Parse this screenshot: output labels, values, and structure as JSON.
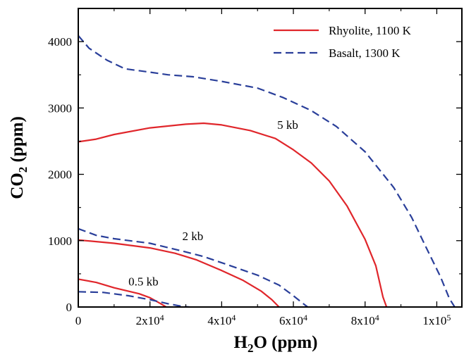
{
  "chart_data": {
    "type": "line",
    "xlabel": {
      "main": "H",
      "sub": "2",
      "rest": "O (ppm)"
    },
    "ylabel": {
      "main": "CO",
      "sub": "2",
      "rest": " (ppm)"
    },
    "xlim": [
      0,
      107000
    ],
    "ylim": [
      0,
      4500
    ],
    "x_ticks": [
      {
        "value": 0,
        "base": "0",
        "exp": ""
      },
      {
        "value": 20000,
        "base": "2x10",
        "exp": "4"
      },
      {
        "value": 40000,
        "base": "4x10",
        "exp": "4"
      },
      {
        "value": 60000,
        "base": "6x10",
        "exp": "4"
      },
      {
        "value": 80000,
        "base": "8x10",
        "exp": "4"
      },
      {
        "value": 100000,
        "base": "1x10",
        "exp": "5"
      }
    ],
    "y_ticks": [
      {
        "value": 0,
        "label": "0"
      },
      {
        "value": 1000,
        "label": "1000"
      },
      {
        "value": 2000,
        "label": "2000"
      },
      {
        "value": 3000,
        "label": "3000"
      },
      {
        "value": 4000,
        "label": "4000"
      }
    ],
    "legend": {
      "position": "top-right",
      "entries": [
        {
          "label": "Rhyolite, 1100 K",
          "style": "solid",
          "color": "#e0262b"
        },
        {
          "label": "Basalt, 1300 K",
          "style": "dashed",
          "color": "#2a3f9a"
        }
      ]
    },
    "series": [
      {
        "group": "Rhyolite, 1100 K",
        "pressure": "5 kb",
        "style": "solid",
        "color": "#e0262b",
        "points": [
          [
            0,
            2490
          ],
          [
            5000,
            2530
          ],
          [
            10000,
            2600
          ],
          [
            20000,
            2700
          ],
          [
            30000,
            2755
          ],
          [
            35000,
            2770
          ],
          [
            40000,
            2745
          ],
          [
            48000,
            2660
          ],
          [
            55000,
            2540
          ],
          [
            60000,
            2370
          ],
          [
            65000,
            2170
          ],
          [
            70000,
            1900
          ],
          [
            75000,
            1520
          ],
          [
            80000,
            1020
          ],
          [
            83000,
            620
          ],
          [
            85000,
            150
          ],
          [
            86000,
            0
          ]
        ]
      },
      {
        "group": "Basalt, 1300 K",
        "pressure": "5 kb",
        "style": "dashed",
        "color": "#2a3f9a",
        "points": [
          [
            0,
            4090
          ],
          [
            3000,
            3900
          ],
          [
            8000,
            3720
          ],
          [
            13000,
            3590
          ],
          [
            20000,
            3540
          ],
          [
            25000,
            3500
          ],
          [
            32000,
            3470
          ],
          [
            40000,
            3400
          ],
          [
            50000,
            3300
          ],
          [
            57000,
            3160
          ],
          [
            65000,
            2960
          ],
          [
            72000,
            2720
          ],
          [
            80000,
            2340
          ],
          [
            88000,
            1800
          ],
          [
            93000,
            1350
          ],
          [
            97000,
            900
          ],
          [
            101000,
            460
          ],
          [
            103500,
            130
          ],
          [
            105000,
            0
          ]
        ]
      },
      {
        "group": "Rhyolite, 1100 K",
        "pressure": "2 kb",
        "style": "solid",
        "color": "#e0262b",
        "points": [
          [
            0,
            1010
          ],
          [
            10000,
            960
          ],
          [
            20000,
            890
          ],
          [
            27000,
            810
          ],
          [
            33000,
            710
          ],
          [
            40000,
            550
          ],
          [
            46000,
            400
          ],
          [
            51000,
            240
          ],
          [
            54000,
            110
          ],
          [
            56000,
            0
          ]
        ]
      },
      {
        "group": "Basalt, 1300 K",
        "pressure": "2 kb",
        "style": "dashed",
        "color": "#2a3f9a",
        "points": [
          [
            0,
            1180
          ],
          [
            5000,
            1080
          ],
          [
            10000,
            1030
          ],
          [
            20000,
            960
          ],
          [
            30000,
            830
          ],
          [
            35000,
            760
          ],
          [
            42000,
            630
          ],
          [
            50000,
            480
          ],
          [
            56000,
            330
          ],
          [
            60000,
            170
          ],
          [
            63000,
            40
          ],
          [
            64000,
            0
          ]
        ]
      },
      {
        "group": "Rhyolite, 1100 K",
        "pressure": "0.5 kb",
        "style": "solid",
        "color": "#e0262b",
        "points": [
          [
            0,
            420
          ],
          [
            5000,
            370
          ],
          [
            10000,
            290
          ],
          [
            17000,
            200
          ],
          [
            20000,
            140
          ],
          [
            23000,
            50
          ],
          [
            24500,
            0
          ]
        ]
      },
      {
        "group": "Basalt, 1300 K",
        "pressure": "0.5 kb",
        "style": "dashed",
        "color": "#2a3f9a",
        "points": [
          [
            0,
            230
          ],
          [
            7000,
            220
          ],
          [
            14000,
            170
          ],
          [
            20000,
            110
          ],
          [
            25000,
            50
          ],
          [
            29000,
            10
          ],
          [
            31000,
            0
          ]
        ]
      }
    ],
    "annotations": [
      {
        "text": "5 kb",
        "x": 55500,
        "y": 2750
      },
      {
        "text": "2 kb",
        "x": 29000,
        "y": 1070
      },
      {
        "text": "0.5 kb",
        "x": 14000,
        "y": 390
      }
    ]
  }
}
